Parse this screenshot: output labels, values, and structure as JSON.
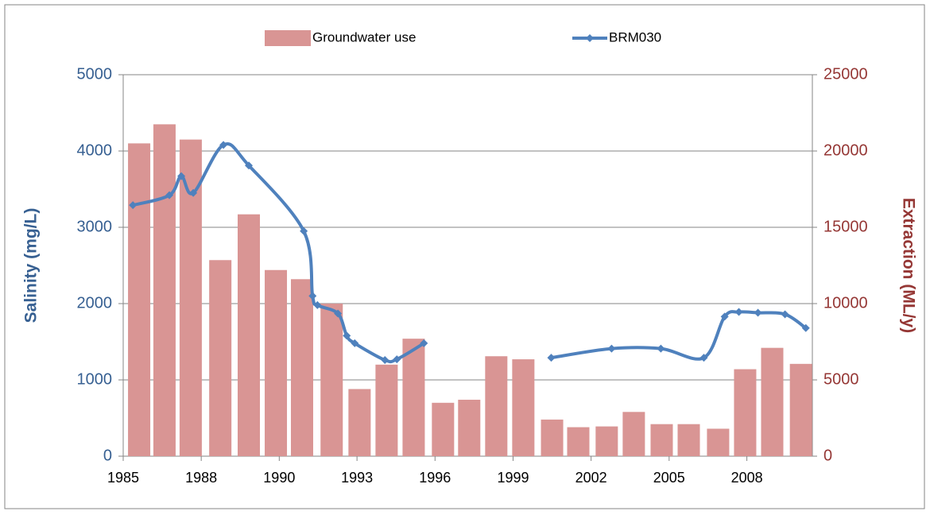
{
  "chart_data": {
    "type": "bar-line",
    "ylabel": "Salinity  (mg/L)",
    "y2label": "Extraction  (ML/y)",
    "xlim": [
      1985,
      2009.2
    ],
    "xticks": [
      {
        "value": 1985,
        "label": "1985"
      },
      {
        "value": 1987.74,
        "label": "1988"
      },
      {
        "value": 1990.48,
        "label": "1990"
      },
      {
        "value": 1993.21,
        "label": "1993"
      },
      {
        "value": 1995.95,
        "label": "1996"
      },
      {
        "value": 1998.69,
        "label": "1999"
      },
      {
        "value": 2001.43,
        "label": "2002"
      },
      {
        "value": 2004.17,
        "label": "2005"
      },
      {
        "value": 2006.9,
        "label": "2008"
      }
    ],
    "ylim": [
      0,
      5000
    ],
    "yticks": [
      0,
      1000,
      2000,
      3000,
      4000,
      5000
    ],
    "y2lim": [
      0,
      25000
    ],
    "y2ticks": [
      0,
      5000,
      10000,
      15000,
      20000,
      25000
    ],
    "grid": true,
    "legend": "top",
    "series": [
      {
        "name": "Groundwater use",
        "type": "bar",
        "axis": "y2",
        "color": "#d99594",
        "x": [
          1985.56,
          1986.45,
          1987.37,
          1988.41,
          1989.41,
          1990.36,
          1991.28,
          1992.32,
          1993.3,
          1994.25,
          1995.2,
          1996.23,
          1997.15,
          1998.1,
          1999.05,
          2000.06,
          2000.98,
          2001.98,
          2002.93,
          2003.91,
          2004.86,
          2005.89,
          2006.84,
          2007.79,
          2008.8
        ],
        "values": [
          20500,
          21750,
          20750,
          12850,
          15850,
          12200,
          11600,
          10000,
          4400,
          6000,
          7700,
          3500,
          3700,
          6550,
          6350,
          2400,
          1900,
          1950,
          2900,
          2100,
          2100,
          1800,
          5700,
          7100,
          6050
        ]
      },
      {
        "name": "BRM030",
        "type": "line",
        "color": "#4f81bd",
        "x": [
          1985.34,
          1986.62,
          1987.04,
          1987.46,
          1988.52,
          1989.41,
          1991.34,
          1991.65,
          1991.82,
          1992.54,
          1992.85,
          1993.13,
          1994.19,
          1994.61,
          1995.56,
          null,
          2000.03,
          2002.15,
          2003.88,
          2005.39,
          2006.12,
          2006.62,
          2007.29,
          2008.24,
          2008.97
        ],
        "values": [
          3290,
          3420,
          3670,
          3450,
          4080,
          3810,
          2950,
          2100,
          1980,
          1870,
          1580,
          1480,
          1260,
          1270,
          1480,
          null,
          1290,
          1410,
          1410,
          1290,
          1830,
          1890,
          1880,
          1860,
          1680
        ]
      }
    ]
  }
}
